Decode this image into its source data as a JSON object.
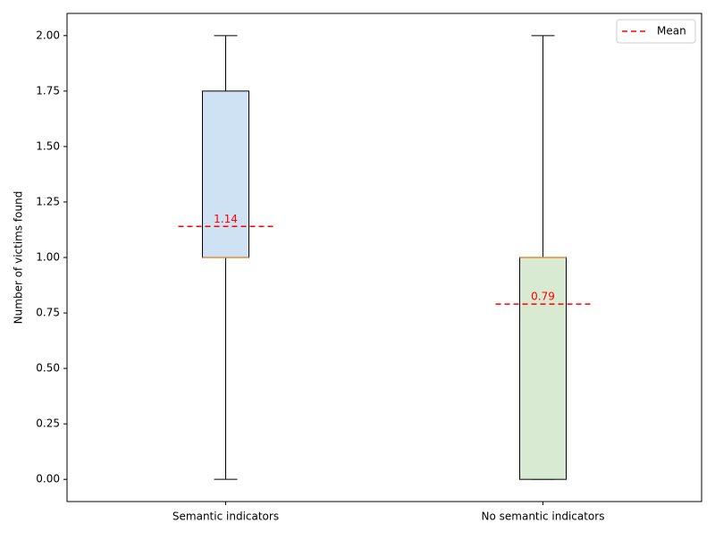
{
  "chart_data": {
    "type": "box",
    "y_label": "Number of victims found",
    "categories": [
      "Semantic indicators",
      "No semantic indicators"
    ],
    "boxes": [
      {
        "whislo": 0,
        "q1": 1.0,
        "median": 1.0,
        "q3": 1.75,
        "whishi": 2.0,
        "mean": 1.14,
        "color": "#cfe2f3"
      },
      {
        "whislo": 0,
        "q1": 0,
        "median": 1.0,
        "q3": 1.0,
        "whishi": 2.0,
        "mean": 0.79,
        "color": "#d9ead3"
      }
    ],
    "median_color": "#e8883a",
    "mean_color": "#ff0000",
    "legend": {
      "label": "Mean",
      "loc": "upper right"
    },
    "ylim": [
      -0.1,
      2.1
    ],
    "yticks": [
      {
        "value": 0,
        "label": "0.00"
      },
      {
        "value": 0.25,
        "label": "0.25"
      },
      {
        "value": 0.5,
        "label": "0.50"
      },
      {
        "value": 0.75,
        "label": "0.75"
      },
      {
        "value": 1.0,
        "label": "1.00"
      },
      {
        "value": 1.25,
        "label": "1.25"
      },
      {
        "value": 1.5,
        "label": "1.50"
      },
      {
        "value": 1.75,
        "label": "1.75"
      },
      {
        "value": 2.0,
        "label": "2.00"
      }
    ]
  }
}
